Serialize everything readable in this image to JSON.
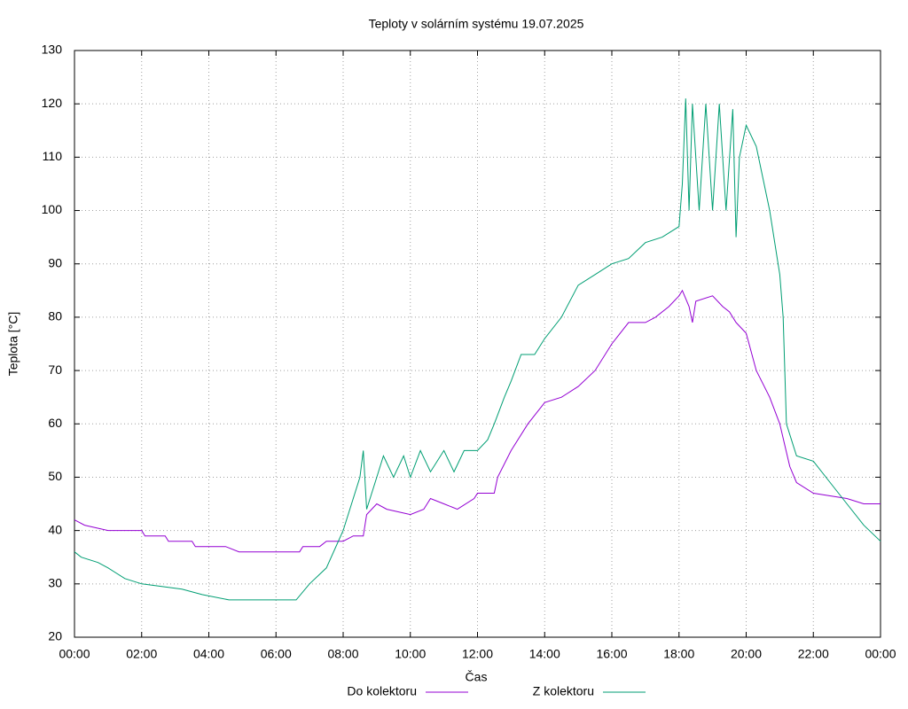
{
  "chart_data": {
    "type": "line",
    "title": "Teploty v solárním systému 19.07.2025",
    "x_label": "Čas",
    "y_label": "Teplota [°C]",
    "xlim": [
      0,
      24
    ],
    "xticks": [
      {
        "value": 0,
        "label": "00:00"
      },
      {
        "value": 2,
        "label": "02:00"
      },
      {
        "value": 4,
        "label": "04:00"
      },
      {
        "value": 6,
        "label": "06:00"
      },
      {
        "value": 8,
        "label": "08:00"
      },
      {
        "value": 10,
        "label": "10:00"
      },
      {
        "value": 12,
        "label": "12:00"
      },
      {
        "value": 14,
        "label": "14:00"
      },
      {
        "value": 16,
        "label": "16:00"
      },
      {
        "value": 18,
        "label": "18:00"
      },
      {
        "value": 20,
        "label": "20:00"
      },
      {
        "value": 22,
        "label": "22:00"
      },
      {
        "value": 24,
        "label": "00:00"
      }
    ],
    "ylim": [
      20,
      130
    ],
    "yticks": [
      20,
      30,
      40,
      50,
      60,
      70,
      80,
      90,
      100,
      110,
      120,
      130
    ],
    "grid": true,
    "legend": "bottom",
    "series": [
      {
        "name": "Do kolektoru",
        "color": "#9400d3",
        "x": [
          0,
          0.3,
          1,
          2,
          2.1,
          2.7,
          2.8,
          3.5,
          3.6,
          4.5,
          4.9,
          5,
          6,
          6.7,
          6.8,
          7.3,
          7.5,
          8,
          8.3,
          8.6,
          8.7,
          9,
          9.3,
          10,
          10.4,
          10.6,
          11,
          11.4,
          11.9,
          12,
          12.5,
          12.6,
          13,
          13.5,
          14,
          14.5,
          15,
          15.5,
          16,
          16.5,
          17,
          17.3,
          17.7,
          18,
          18.1,
          18.3,
          18.4,
          18.5,
          19,
          19.3,
          19.5,
          19.7,
          20,
          20.3,
          20.7,
          21,
          21.3,
          21.5,
          22,
          23,
          23.5,
          24
        ],
        "values": [
          42,
          41,
          40,
          40,
          39,
          39,
          38,
          38,
          37,
          37,
          36,
          36,
          36,
          36,
          37,
          37,
          38,
          38,
          39,
          39,
          43,
          45,
          44,
          43,
          44,
          46,
          45,
          44,
          46,
          47,
          47,
          50,
          55,
          60,
          64,
          65,
          67,
          70,
          75,
          79,
          79,
          80,
          82,
          84,
          85,
          82,
          79,
          83,
          84,
          82,
          81,
          79,
          77,
          70,
          65,
          60,
          52,
          49,
          47,
          46,
          45,
          45
        ]
      },
      {
        "name": "Z kolektoru",
        "color": "#009e73",
        "x": [
          0,
          0.2,
          0.7,
          1,
          1.5,
          2,
          3.2,
          3.8,
          4.6,
          5,
          6,
          6.6,
          7,
          7.5,
          8,
          8.5,
          8.6,
          8.7,
          9,
          9.2,
          9.5,
          9.8,
          10,
          10.3,
          10.6,
          11,
          11.3,
          11.6,
          12,
          12.3,
          12.5,
          12.8,
          13,
          13.3,
          13.7,
          14,
          14.5,
          15,
          15.5,
          16,
          16.5,
          17,
          17.5,
          18,
          18.1,
          18.2,
          18.3,
          18.4,
          18.6,
          18.8,
          19,
          19.2,
          19.4,
          19.6,
          19.7,
          19.8,
          20,
          20.3,
          20.7,
          21,
          21.1,
          21.2,
          21.5,
          22,
          22.5,
          23,
          23.5,
          24
        ],
        "values": [
          36,
          35,
          34,
          33,
          31,
          30,
          29,
          28,
          27,
          27,
          27,
          27,
          30,
          33,
          40,
          50,
          55,
          44,
          50,
          54,
          50,
          54,
          50,
          55,
          51,
          55,
          51,
          55,
          55,
          57,
          60,
          65,
          68,
          73,
          73,
          76,
          80,
          86,
          88,
          90,
          91,
          94,
          95,
          97,
          105,
          121,
          100,
          120,
          100,
          120,
          100,
          120,
          100,
          119,
          95,
          110,
          116,
          112,
          100,
          88,
          80,
          60,
          54,
          53,
          49,
          45,
          41,
          38
        ]
      }
    ]
  }
}
